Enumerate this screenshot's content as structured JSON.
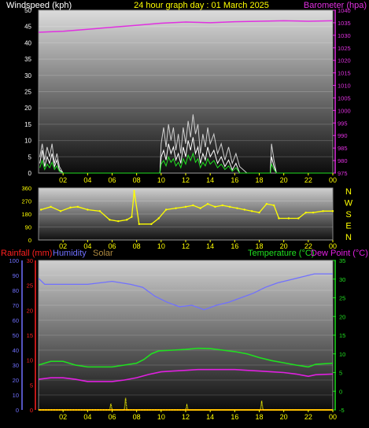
{
  "header": {
    "left": "Windspeed (kph)",
    "center": "24 hour graph day : 01 March 2025",
    "right": "Barometer (hpa)"
  },
  "colors": {
    "wind": "#ffffff",
    "gust": "#d0d0d0",
    "barometer": "#e030e0",
    "direction": "#ffff00",
    "rainfall": "#ff2020",
    "humidity": "#7070ff",
    "solar": "#b08a40",
    "temperature": "#20e020",
    "dewpoint": "#e020e0",
    "axis_text_left": "#ffffff",
    "axis_right_baro": "#e030e0",
    "axis_right_temp": "#20e020",
    "axis_left_rain": "#ff2020",
    "axis_left_hum": "#7070ff",
    "xtick": "#ffff00"
  },
  "x_ticks": [
    "02",
    "04",
    "06",
    "08",
    "10",
    "12",
    "14",
    "16",
    "18",
    "20",
    "22",
    "00"
  ],
  "panel1": {
    "wind_ticks": [
      "0",
      "5",
      "10",
      "15",
      "20",
      "25",
      "30",
      "35",
      "40",
      "45",
      "50"
    ],
    "baro_ticks": [
      "975",
      "980",
      "985",
      "990",
      "995",
      "1000",
      "1005",
      "1010",
      "1015",
      "1020",
      "1025",
      "1030",
      "1035",
      "1040"
    ]
  },
  "panel2": {
    "dir_ticks": [
      "0",
      "90",
      "180",
      "270",
      "360"
    ],
    "compass": [
      "N",
      "W",
      "S",
      "E",
      "N"
    ]
  },
  "panel3": {
    "labels": {
      "rainfall": "Rainfall (mm)",
      "humidity": "Humidity",
      "solar": "Solar",
      "temperature": "Temperature (°C)",
      "dewpoint": "Dew Point (°C)"
    },
    "hum_ticks": [
      "0",
      "10",
      "20",
      "30",
      "40",
      "50",
      "60",
      "70",
      "80",
      "90",
      "100"
    ],
    "rain_ticks": [
      "0",
      "5",
      "10",
      "15",
      "20",
      "25",
      "30"
    ],
    "temp_ticks": [
      "-5",
      "0",
      "5",
      "10",
      "15",
      "20",
      "25",
      "30",
      "35"
    ]
  },
  "chart_data": [
    {
      "type": "line",
      "x_range": [
        0,
        24
      ],
      "series": [
        {
          "name": "Windspeed (kph)",
          "axis": "wind",
          "ylim": [
            0,
            50
          ],
          "points": [
            [
              0.1,
              3
            ],
            [
              0.3,
              7
            ],
            [
              0.5,
              2
            ],
            [
              0.7,
              5
            ],
            [
              0.9,
              3
            ],
            [
              1.1,
              6
            ],
            [
              1.3,
              2
            ],
            [
              1.5,
              4
            ],
            [
              1.7,
              1
            ],
            [
              2.0,
              0
            ],
            [
              4.0,
              0
            ],
            [
              8.0,
              0
            ],
            [
              9.9,
              0
            ],
            [
              10.0,
              5
            ],
            [
              10.2,
              7
            ],
            [
              10.4,
              4
            ],
            [
              10.6,
              9
            ],
            [
              10.8,
              6
            ],
            [
              11.0,
              8
            ],
            [
              11.2,
              4
            ],
            [
              11.4,
              6
            ],
            [
              11.6,
              3
            ],
            [
              11.8,
              8
            ],
            [
              12.0,
              5
            ],
            [
              12.2,
              10
            ],
            [
              12.4,
              7
            ],
            [
              12.6,
              11
            ],
            [
              12.8,
              6
            ],
            [
              13.0,
              8
            ],
            [
              13.2,
              3
            ],
            [
              13.4,
              6
            ],
            [
              13.6,
              4
            ],
            [
              13.8,
              8
            ],
            [
              14.0,
              5
            ],
            [
              14.3,
              7
            ],
            [
              14.6,
              3
            ],
            [
              14.9,
              5
            ],
            [
              15.2,
              2
            ],
            [
              15.5,
              4
            ],
            [
              15.8,
              1
            ],
            [
              16.1,
              3
            ],
            [
              16.4,
              0
            ],
            [
              17.0,
              0
            ],
            [
              18.9,
              0
            ],
            [
              19.0,
              5
            ],
            [
              19.2,
              2
            ],
            [
              19.4,
              0
            ],
            [
              21.0,
              0
            ],
            [
              24.0,
              0
            ]
          ]
        },
        {
          "name": "Gust",
          "axis": "wind",
          "ylim": [
            0,
            50
          ],
          "points": [
            [
              0.1,
              5
            ],
            [
              0.3,
              9
            ],
            [
              0.5,
              4
            ],
            [
              0.7,
              8
            ],
            [
              0.9,
              5
            ],
            [
              1.1,
              9
            ],
            [
              1.3,
              3
            ],
            [
              1.5,
              6
            ],
            [
              1.7,
              2
            ],
            [
              2.0,
              0
            ],
            [
              9.9,
              0
            ],
            [
              10.0,
              9
            ],
            [
              10.2,
              14
            ],
            [
              10.4,
              8
            ],
            [
              10.6,
              15
            ],
            [
              10.8,
              10
            ],
            [
              11.0,
              14
            ],
            [
              11.2,
              7
            ],
            [
              11.4,
              12
            ],
            [
              11.6,
              6
            ],
            [
              11.8,
              14
            ],
            [
              12.0,
              9
            ],
            [
              12.2,
              16
            ],
            [
              12.4,
              11
            ],
            [
              12.6,
              18
            ],
            [
              12.8,
              12
            ],
            [
              13.0,
              15
            ],
            [
              13.2,
              6
            ],
            [
              13.4,
              12
            ],
            [
              13.6,
              8
            ],
            [
              13.8,
              14
            ],
            [
              14.0,
              9
            ],
            [
              14.3,
              12
            ],
            [
              14.6,
              6
            ],
            [
              14.9,
              9
            ],
            [
              15.2,
              4
            ],
            [
              15.5,
              8
            ],
            [
              15.8,
              3
            ],
            [
              16.1,
              6
            ],
            [
              16.4,
              2
            ],
            [
              17.0,
              0
            ],
            [
              18.9,
              0
            ],
            [
              19.0,
              9
            ],
            [
              19.2,
              4
            ],
            [
              19.4,
              0
            ],
            [
              24.0,
              0
            ]
          ]
        },
        {
          "name": "Barometer (hpa)",
          "axis": "baro",
          "ylim": [
            975,
            1040
          ],
          "points": [
            [
              0,
              1031.2
            ],
            [
              2,
              1031.6
            ],
            [
              4,
              1032.4
            ],
            [
              6,
              1033.2
            ],
            [
              8,
              1034.0
            ],
            [
              10,
              1034.8
            ],
            [
              12,
              1035.3
            ],
            [
              14,
              1035.0
            ],
            [
              16,
              1035.4
            ],
            [
              18,
              1035.6
            ],
            [
              20,
              1035.8
            ],
            [
              22,
              1035.6
            ],
            [
              24,
              1035.8
            ]
          ]
        }
      ]
    },
    {
      "type": "scatter",
      "x_range": [
        0,
        24
      ],
      "series": [
        {
          "name": "Wind direction",
          "ylim": [
            0,
            360
          ],
          "points": [
            [
              0.2,
              210
            ],
            [
              1.0,
              230
            ],
            [
              1.8,
              200
            ],
            [
              2.6,
              225
            ],
            [
              3.2,
              230
            ],
            [
              4.0,
              210
            ],
            [
              5.0,
              200
            ],
            [
              5.8,
              140
            ],
            [
              6.5,
              130
            ],
            [
              7.2,
              140
            ],
            [
              7.6,
              160
            ],
            [
              7.8,
              340
            ],
            [
              8.2,
              110
            ],
            [
              9.2,
              110
            ],
            [
              9.8,
              150
            ],
            [
              10.4,
              210
            ],
            [
              11.2,
              220
            ],
            [
              12.0,
              230
            ],
            [
              12.6,
              240
            ],
            [
              13.2,
              220
            ],
            [
              13.8,
              250
            ],
            [
              14.4,
              230
            ],
            [
              15.0,
              240
            ],
            [
              15.6,
              230
            ],
            [
              16.2,
              220
            ],
            [
              16.8,
              210
            ],
            [
              17.4,
              200
            ],
            [
              18.0,
              190
            ],
            [
              18.6,
              250
            ],
            [
              19.2,
              240
            ],
            [
              19.6,
              150
            ],
            [
              20.4,
              150
            ],
            [
              21.2,
              150
            ],
            [
              21.8,
              190
            ],
            [
              22.4,
              190
            ],
            [
              23.2,
              200
            ],
            [
              24.0,
              200
            ]
          ]
        }
      ]
    },
    {
      "type": "line",
      "x_range": [
        0,
        24
      ],
      "series": [
        {
          "name": "Humidity",
          "axis": "hum",
          "ylim": [
            0,
            100
          ],
          "points": [
            [
              0,
              88
            ],
            [
              0.5,
              84
            ],
            [
              2,
              84
            ],
            [
              4,
              84
            ],
            [
              6,
              86
            ],
            [
              7.5,
              84
            ],
            [
              8.5,
              82
            ],
            [
              9.5,
              76
            ],
            [
              10.5,
              72
            ],
            [
              11.5,
              69
            ],
            [
              12.5,
              70
            ],
            [
              13.5,
              67
            ],
            [
              14.5,
              70
            ],
            [
              15.5,
              72
            ],
            [
              16.5,
              75
            ],
            [
              17.5,
              78
            ],
            [
              18.5,
              82
            ],
            [
              19.5,
              85
            ],
            [
              20.5,
              87
            ],
            [
              21.5,
              89
            ],
            [
              22.5,
              91
            ],
            [
              24,
              91
            ]
          ]
        },
        {
          "name": "Temperature (°C)",
          "axis": "temp",
          "ylim": [
            -5,
            35
          ],
          "points": [
            [
              0,
              7
            ],
            [
              1,
              8
            ],
            [
              2,
              8
            ],
            [
              3,
              7
            ],
            [
              4,
              6.5
            ],
            [
              6,
              6.5
            ],
            [
              7,
              7
            ],
            [
              8,
              7.5
            ],
            [
              8.6,
              8.5
            ],
            [
              9.2,
              10
            ],
            [
              9.8,
              10.8
            ],
            [
              11,
              11
            ],
            [
              12,
              11.2
            ],
            [
              13,
              11.5
            ],
            [
              14,
              11.4
            ],
            [
              15,
              11
            ],
            [
              16,
              10.6
            ],
            [
              17,
              10
            ],
            [
              18,
              9
            ],
            [
              19,
              8.2
            ],
            [
              20,
              7.6
            ],
            [
              21,
              7
            ],
            [
              22,
              6.5
            ],
            [
              22.6,
              7.2
            ],
            [
              24,
              7.5
            ]
          ]
        },
        {
          "name": "Dew Point (°C)",
          "axis": "temp",
          "ylim": [
            -5,
            35
          ],
          "points": [
            [
              0,
              3.2
            ],
            [
              1,
              3.6
            ],
            [
              2,
              3.6
            ],
            [
              3,
              3.2
            ],
            [
              4,
              2.6
            ],
            [
              6,
              2.6
            ],
            [
              7,
              3
            ],
            [
              8,
              3.6
            ],
            [
              9,
              4.5
            ],
            [
              10,
              5.2
            ],
            [
              11,
              5.4
            ],
            [
              12,
              5.6
            ],
            [
              13,
              5.8
            ],
            [
              14,
              5.8
            ],
            [
              15,
              5.8
            ],
            [
              16,
              5.8
            ],
            [
              17,
              5.6
            ],
            [
              18,
              5.4
            ],
            [
              19,
              5.2
            ],
            [
              20,
              5
            ],
            [
              21,
              4.6
            ],
            [
              22,
              4
            ],
            [
              22.6,
              4.4
            ],
            [
              24,
              4.6
            ]
          ]
        },
        {
          "name": "Rainfall (mm)",
          "axis": "rain",
          "ylim": [
            0,
            30
          ],
          "points": [
            [
              0,
              0
            ],
            [
              24,
              0
            ]
          ]
        },
        {
          "name": "Solar",
          "axis": "solar",
          "ylim": [
            0,
            1000
          ],
          "points": [
            [
              0,
              0
            ],
            [
              5.8,
              0
            ],
            [
              5.9,
              40
            ],
            [
              6.0,
              0
            ],
            [
              7.0,
              0
            ],
            [
              7.1,
              80
            ],
            [
              7.2,
              0
            ],
            [
              12.0,
              0
            ],
            [
              12.1,
              30
            ],
            [
              12.2,
              0
            ],
            [
              18.1,
              0
            ],
            [
              18.2,
              60
            ],
            [
              18.3,
              0
            ],
            [
              24,
              0
            ]
          ]
        }
      ]
    }
  ]
}
